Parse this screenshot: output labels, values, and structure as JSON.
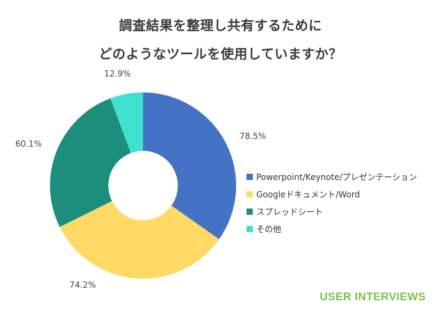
{
  "chart_data": {
    "type": "pie",
    "title_line1": "調査結果を整理し共有するために",
    "title_line2": "どのようなツールを使用していますか？",
    "series": [
      {
        "name": "Powerpoint/Keynote/プレゼンテーション",
        "value": 78.5,
        "label": "78.5%",
        "color": "#4472c4"
      },
      {
        "name": "Googleドキュメント/Word",
        "value": 74.2,
        "label": "74.2%",
        "color": "#ffd966"
      },
      {
        "name": "スプレッドシート",
        "value": 60.1,
        "label": "60.1%",
        "color": "#1b8f7c"
      },
      {
        "name": "その他",
        "value": 12.9,
        "label": "12.9%",
        "color": "#40e0d0"
      }
    ],
    "legend_position": "right",
    "donut": true
  },
  "brand": "USER INTERVIEWS"
}
